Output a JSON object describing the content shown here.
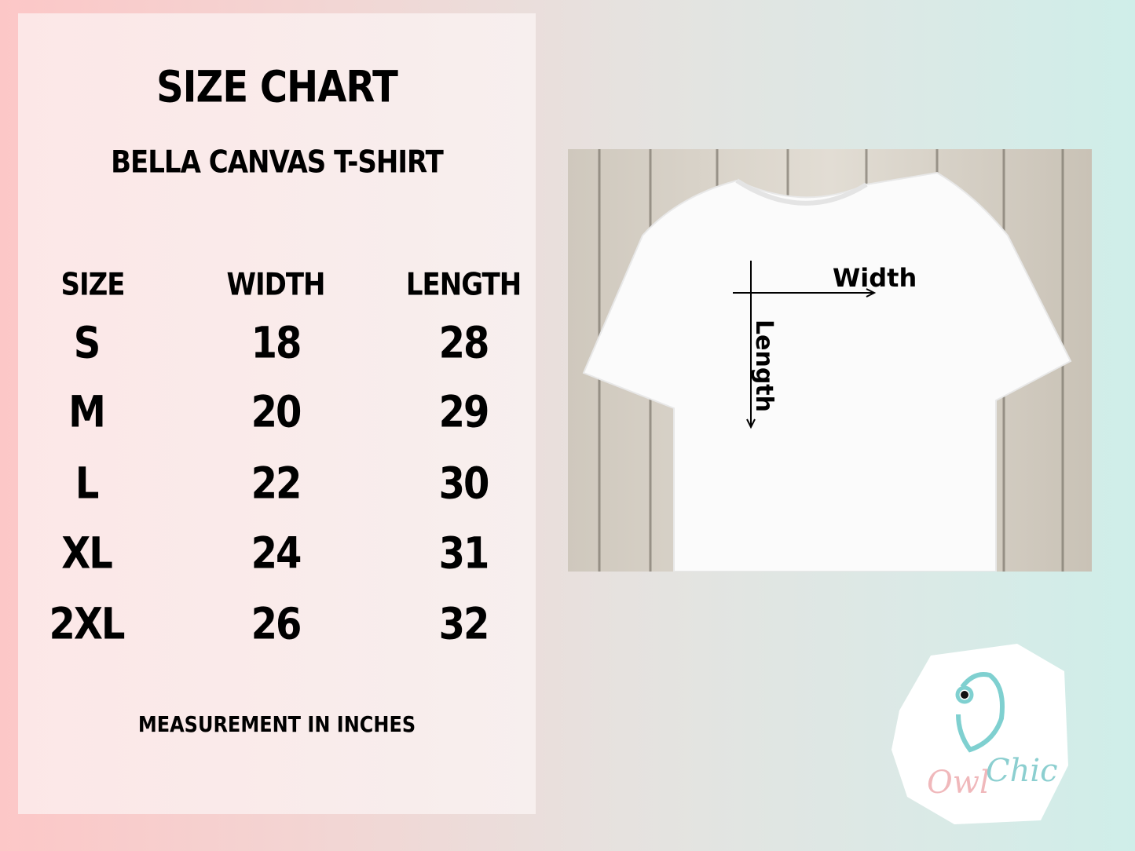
{
  "title": "SIZE CHART",
  "subtitle": "BELLA CANVAS T-SHIRT",
  "table": {
    "headers": [
      "SIZE",
      "WIDTH",
      "LENGTH"
    ],
    "rows": [
      [
        "S",
        "18",
        "28"
      ],
      [
        "M",
        "20",
        "29"
      ],
      [
        "L",
        "22",
        "30"
      ],
      [
        "XL",
        "24",
        "31"
      ],
      [
        "2XL",
        "26",
        "32"
      ]
    ]
  },
  "note": "MEASUREMENT IN INCHES",
  "diagram": {
    "width_label": "Width",
    "length_label": "Length"
  },
  "logo": {
    "text": "Owl Chic",
    "color": "#7fd0d0"
  }
}
